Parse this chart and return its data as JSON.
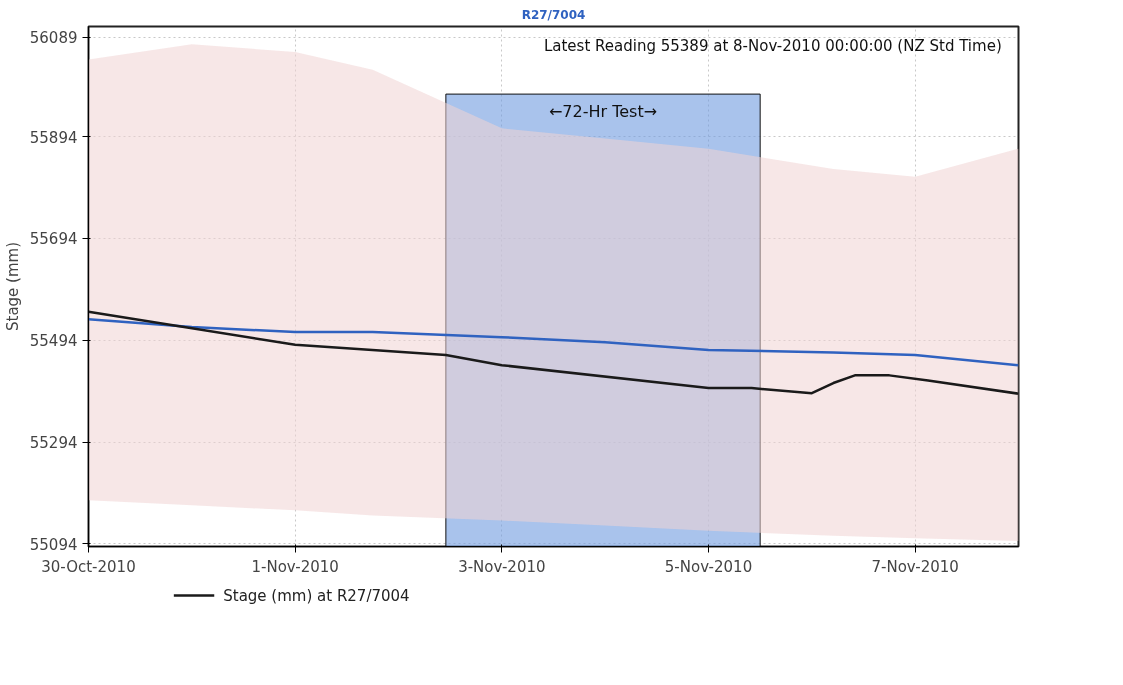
{
  "chart_data": {
    "type": "line",
    "title": "R27/7004",
    "ylabel": "Stage (mm)",
    "annotations": [
      "Latest Reading 55389 at  8-Nov-2010 00:00:00 (NZ Std Time)"
    ],
    "xlim": [
      "2010-10-30",
      "2010-11-08"
    ],
    "xticks": [
      {
        "value": "2010-10-30",
        "label": "30-Oct-2010"
      },
      {
        "value": "2010-11-01",
        "label": "1-Nov-2010"
      },
      {
        "value": "2010-11-03",
        "label": "3-Nov-2010"
      },
      {
        "value": "2010-11-05",
        "label": "5-Nov-2010"
      },
      {
        "value": "2010-11-07",
        "label": "7-Nov-2010"
      }
    ],
    "ylim": [
      55089,
      56110
    ],
    "yticks": [
      55094,
      55294,
      55494,
      55694,
      55894,
      56089
    ],
    "grid": true,
    "legend": "bottom left",
    "line_style": "solid",
    "bands": [
      {
        "axis": "x",
        "from": "2010-11-02T11:00",
        "to": "2010-11-05T12:00",
        "label": "←72-Hr Test→",
        "color": "#6f9be0"
      }
    ],
    "series": [
      {
        "color": "#2f62c0",
        "x": [
          "2010-10-30",
          "2010-10-31",
          "2010-11-01",
          "2010-11-01T18:00",
          "2010-11-03",
          "2010-11-04",
          "2010-11-05",
          "2010-11-06T05:00",
          "2010-11-07",
          "2010-11-08"
        ],
        "values": [
          55535,
          55520,
          55510,
          55510,
          55500,
          55490,
          55475,
          55470,
          55465,
          55445
        ],
        "lower": [
          55180,
          55170,
          55160,
          55150,
          55140,
          55130,
          55120,
          55110,
          55105,
          55100
        ],
        "upper": [
          56045,
          56075,
          56060,
          56025,
          55910,
          55890,
          55870,
          55830,
          55815,
          55870
        ]
      },
      {
        "name": "Stage (mm) at R27/7004",
        "color": "#1a1a1a",
        "x": [
          "2010-10-30",
          "2010-11-01",
          "2010-11-02T11:00",
          "2010-11-03",
          "2010-11-05",
          "2010-11-05T10:00",
          "2010-11-06",
          "2010-11-06T05:00",
          "2010-11-06T10:00",
          "2010-11-06T18:00",
          "2010-11-07T03:00",
          "2010-11-08"
        ],
        "values": [
          55550,
          55485,
          55465,
          55445,
          55400,
          55400,
          55390,
          55410,
          55425,
          55425,
          55415,
          55389
        ]
      }
    ]
  }
}
